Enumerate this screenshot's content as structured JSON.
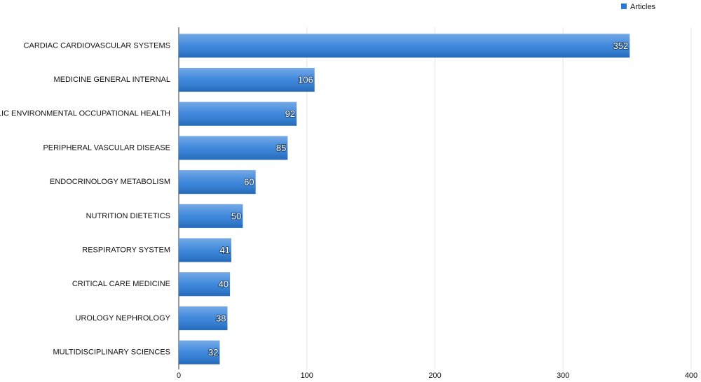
{
  "chart_data": {
    "type": "bar",
    "orientation": "horizontal",
    "categories": [
      "CARDIAC CARDIOVASCULAR SYSTEMS",
      "MEDICINE GENERAL INTERNAL",
      "PUBLIC ENVIRONMENTAL OCCUPATIONAL HEALTH",
      "PERIPHERAL VASCULAR DISEASE",
      "ENDOCRINOLOGY METABOLISM",
      "NUTRITION DIETETICS",
      "RESPIRATORY SYSTEM",
      "CRITICAL CARE MEDICINE",
      "UROLOGY NEPHROLOGY",
      "MULTIDISCIPLINARY SCIENCES"
    ],
    "series": [
      {
        "name": "Articles",
        "color": "#2a7bd8",
        "values": [
          352,
          106,
          92,
          85,
          60,
          50,
          41,
          40,
          38,
          32
        ]
      }
    ],
    "xlim": [
      0,
      400
    ],
    "xticks": [
      0,
      100,
      200,
      300,
      400
    ],
    "grid": true,
    "legend": "top-right"
  }
}
